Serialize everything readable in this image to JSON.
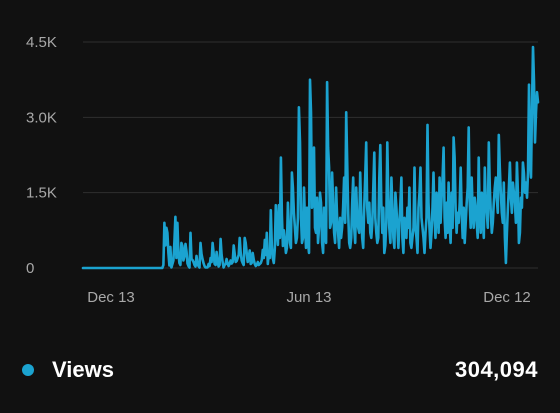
{
  "colors": {
    "series": "#1ba3d0",
    "background": "#111111"
  },
  "legend": {
    "label": "Views",
    "total": "304,094"
  },
  "chart_data": {
    "type": "line",
    "x_tick_labels": [
      "Dec 13",
      "Jun 13",
      "Dec 12"
    ],
    "y_tick_labels": [
      "0",
      "1.5K",
      "3.0K",
      "4.5K"
    ],
    "y_ticks": [
      0,
      1500,
      3000,
      4500
    ],
    "ylim": [
      0,
      4500
    ],
    "grid": true,
    "series": [
      {
        "name": "Views",
        "values": [
          0,
          0,
          0,
          0,
          0,
          0,
          0,
          0,
          0,
          0,
          0,
          0,
          0,
          0,
          0,
          0,
          0,
          0,
          0,
          0,
          0,
          0,
          0,
          0,
          0,
          0,
          0,
          0,
          0,
          0,
          0,
          0,
          0,
          0,
          0,
          0,
          0,
          0,
          0,
          0,
          0,
          0,
          0,
          0,
          0,
          0,
          0,
          0,
          0,
          0,
          0,
          0,
          0,
          0,
          0,
          0,
          0,
          0,
          0,
          0,
          0,
          0,
          0,
          0,
          0,
          0,
          0,
          0,
          0,
          0,
          0,
          0,
          0,
          0,
          0,
          0,
          0,
          0,
          0,
          0,
          60,
          900,
          450,
          800,
          700,
          300,
          50,
          420,
          10,
          80,
          150,
          520,
          1020,
          200,
          900,
          300,
          100,
          60,
          500,
          440,
          150,
          230,
          480,
          330,
          90,
          40,
          10,
          700,
          180,
          160,
          120,
          60,
          30,
          240,
          80,
          40,
          10,
          500,
          280,
          180,
          100,
          40,
          10,
          10,
          10,
          80,
          40,
          200,
          120,
          500,
          300,
          80,
          60,
          320,
          140,
          30,
          60,
          580,
          260,
          120,
          10,
          60,
          80,
          180,
          90,
          40,
          80,
          150,
          90,
          120,
          450,
          280,
          120,
          140,
          200,
          260,
          600,
          300,
          150,
          100,
          60,
          600,
          500,
          300,
          120,
          200,
          350,
          80,
          100,
          300,
          160,
          80,
          40,
          60,
          120,
          60,
          80,
          100,
          160,
          360,
          200,
          560,
          260,
          700,
          80,
          300,
          200,
          1150,
          450,
          200,
          100,
          380,
          1250,
          800,
          460,
          1250,
          600,
          2200,
          1050,
          440,
          750,
          550,
          300,
          400,
          1300,
          800,
          500,
          400,
          1900,
          1600,
          1100,
          800,
          500,
          600,
          1000,
          3200,
          2500,
          1000,
          500,
          600,
          1600,
          900,
          400,
          1200,
          500,
          300,
          3750,
          3100,
          1200,
          1300,
          2400,
          800,
          700,
          1400,
          500,
          800,
          1500,
          1300,
          500,
          300,
          1200,
          650,
          500,
          3700,
          2400,
          2000,
          800,
          900,
          1900,
          1300,
          700,
          500,
          1600,
          1000,
          700,
          400,
          1000,
          600,
          800,
          1200,
          1800,
          900,
          3100,
          2100,
          1100,
          500,
          400,
          600,
          1300,
          1800,
          800,
          500,
          1600,
          1000,
          800,
          700,
          1900,
          1100,
          600,
          400,
          1200,
          1800,
          2500,
          1200,
          900,
          1300,
          700,
          600,
          900,
          1600,
          2300,
          1000,
          700,
          500,
          600,
          1800,
          2450,
          1300,
          700,
          1200,
          300,
          450,
          900,
          2500,
          1400,
          800,
          500,
          1800,
          1200,
          600,
          400,
          1500,
          1200,
          800,
          400,
          900,
          1300,
          1800,
          600,
          300,
          1000,
          800,
          600,
          1200,
          800,
          1600,
          500,
          400,
          600,
          800,
          2000,
          800,
          600,
          300,
          1200,
          1500,
          2000,
          1000,
          800,
          600,
          300,
          700,
          1000,
          2850,
          1300,
          800,
          400,
          700,
          1200,
          1900,
          1000,
          600,
          1500,
          1100,
          700,
          1800,
          900,
          1400,
          1800,
          2400,
          1000,
          600,
          1300,
          700,
          1700,
          900,
          500,
          1500,
          800,
          2600,
          2200,
          1200,
          700,
          1100,
          900,
          1300,
          2000,
          1100,
          600,
          1200,
          500,
          900,
          1300,
          1600,
          2800,
          1300,
          800,
          1800,
          1100,
          800,
          1400,
          1200,
          900,
          600,
          2200,
          1100,
          700,
          1500,
          1000,
          600,
          2000,
          1300,
          1100,
          800,
          2500,
          1600,
          1100,
          700,
          900,
          1300,
          1600,
          1800,
          1400,
          1100,
          2650,
          2000,
          1500,
          1100,
          900,
          1700,
          600,
          100,
          700,
          1200,
          1600,
          2100,
          1400,
          1100,
          1700,
          1500,
          1300,
          900,
          2100,
          1500,
          500,
          700,
          1400,
          1200,
          2100,
          1900,
          1500,
          1700,
          1400,
          1900,
          3650,
          2200,
          1800,
          3200,
          4400,
          3700,
          2500,
          3100,
          3500,
          3300
        ]
      }
    ]
  }
}
